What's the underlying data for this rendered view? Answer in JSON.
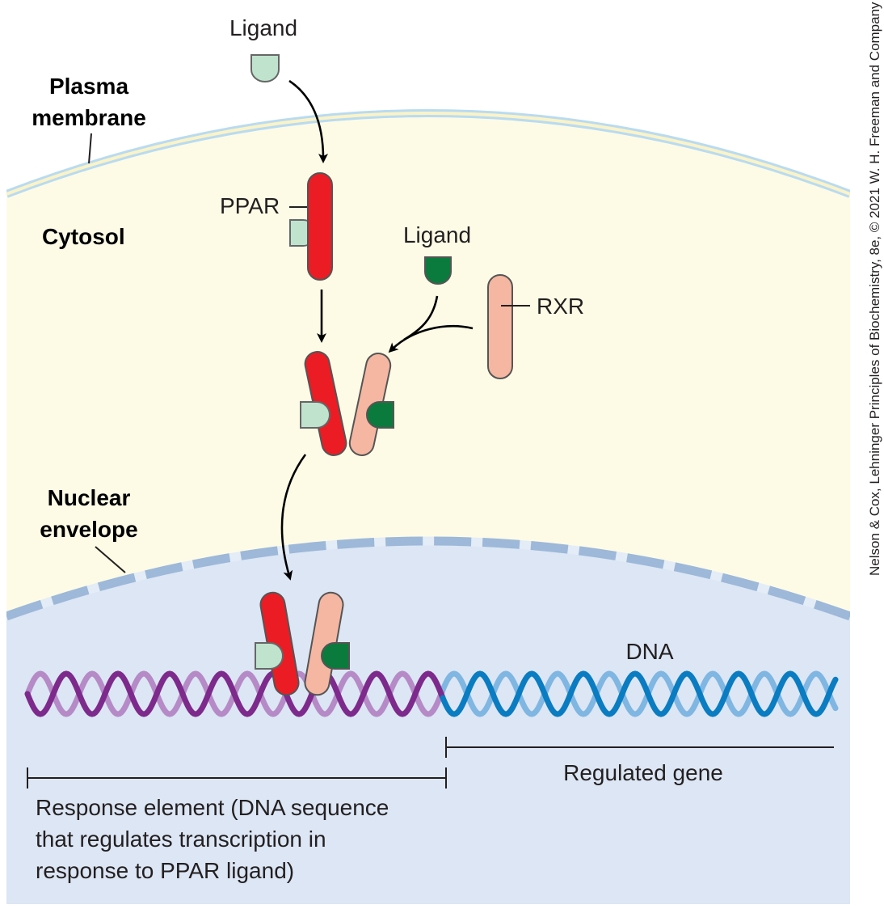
{
  "labels": {
    "plasma_membrane_line1": "Plasma",
    "plasma_membrane_line2": "membrane",
    "cytosol": "Cytosol",
    "nuclear_envelope_line1": "Nuclear",
    "nuclear_envelope_line2": "envelope",
    "ligand_top": "Ligand",
    "ligand_mid": "Ligand",
    "ppar": "PPAR",
    "rxr": "RXR",
    "dna": "DNA",
    "regulated_gene": "Regulated gene",
    "response_element_line1": "Response element (DNA sequence",
    "response_element_line2": "that regulates transcription in",
    "response_element_line3": "response to PPAR ligand)"
  },
  "credit": "Nelson & Cox, Lehninger Principles of Biochemistry, 8e, © 2021 W. H. Freeman and Company",
  "colors": {
    "cytosol": "#fdfbe6",
    "nucleus": "#dce6f4",
    "membrane_outer": "#b9dbf0",
    "membrane_inner": "#fbf3c8",
    "envelope": "#9db8d8",
    "ppar": "#ec1c24",
    "rxr": "#f5b7a2",
    "ligand_ppar": "#bfe3cd",
    "ligand_rxr": "#0a7b3c",
    "dna_response_dark": "#7d2a8c",
    "dna_response_light": "#b58ac6",
    "dna_gene_dark": "#0a7cc1",
    "dna_gene_light": "#7fb6e2"
  }
}
